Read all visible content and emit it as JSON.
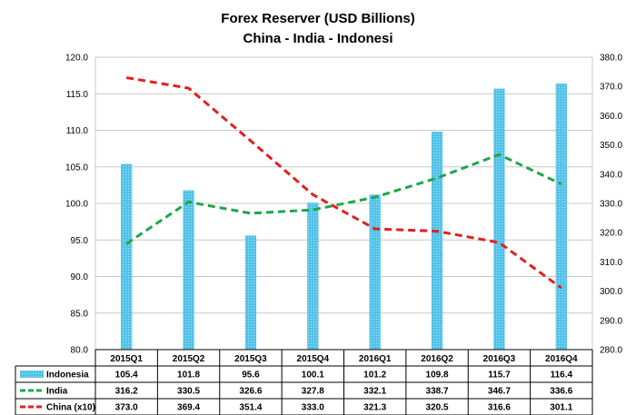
{
  "chart_data": {
    "type": "bar",
    "title": "Forex Reserver (USD Billions)",
    "subtitle": "China - India - Indonesi",
    "categories": [
      "2015Q1",
      "2015Q2",
      "2015Q3",
      "2015Q4",
      "2016Q1",
      "2016Q2",
      "2016Q3",
      "2016Q4"
    ],
    "y_left": {
      "min": 80,
      "max": 120,
      "step": 5,
      "ticks": [
        "80.0",
        "85.0",
        "90.0",
        "95.0",
        "100.0",
        "105.0",
        "110.0",
        "115.0",
        "120.0"
      ]
    },
    "y_right": {
      "min": 280,
      "max": 380,
      "step": 10,
      "ticks": [
        "280.0",
        "290.0",
        "300.0",
        "310.0",
        "320.0",
        "330.0",
        "340.0",
        "350.0",
        "360.0",
        "370.0",
        "380.0"
      ]
    },
    "series": [
      {
        "name": "Indonesia",
        "type": "bar",
        "axis": "left",
        "color": "#3fb6e0",
        "values": [
          105.4,
          101.8,
          95.6,
          100.1,
          101.2,
          109.8,
          115.7,
          116.4
        ],
        "labels": [
          "105.4",
          "101.8",
          "95.6",
          "100.1",
          "101.2",
          "109.8",
          "115.7",
          "116.4"
        ]
      },
      {
        "name": "India",
        "type": "line",
        "axis": "right",
        "color": "#1ea64a",
        "values": [
          316.2,
          330.5,
          326.6,
          327.8,
          332.1,
          338.7,
          346.7,
          336.6
        ],
        "labels": [
          "316.2",
          "330.5",
          "326.6",
          "327.8",
          "332.1",
          "338.7",
          "346.7",
          "336.6"
        ]
      },
      {
        "name": "China (x10)",
        "type": "line",
        "axis": "right",
        "color": "#e02020",
        "values": [
          373.0,
          369.4,
          351.4,
          333.0,
          321.3,
          320.5,
          316.6,
          301.1
        ],
        "labels": [
          "373.0",
          "369.4",
          "351.4",
          "333.0",
          "321.3",
          "320.5",
          "316.6",
          "301.1"
        ]
      }
    ],
    "grid": true,
    "legend": "data-table"
  }
}
